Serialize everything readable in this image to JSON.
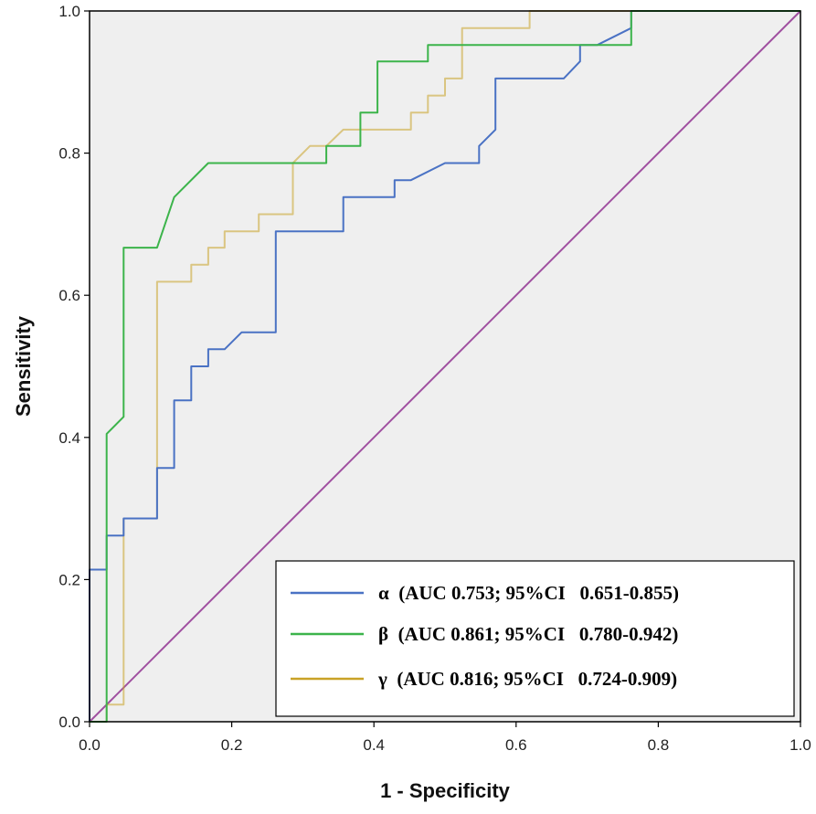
{
  "chart_data": {
    "type": "line",
    "title": "",
    "xlabel": "1 - Specificity",
    "ylabel": "Sensitivity",
    "xlim": [
      0,
      1
    ],
    "ylim": [
      0,
      1
    ],
    "x_ticks": [
      "0.0",
      "0.2",
      "0.4",
      "0.6",
      "0.8",
      "1.0"
    ],
    "y_ticks": [
      "0.0",
      "0.2",
      "0.4",
      "0.6",
      "0.8",
      "1.0"
    ],
    "grid": false,
    "legend_position": "bottom-right",
    "reference_line": {
      "name": "reference",
      "color": "#a050a0",
      "points": [
        [
          0,
          0
        ],
        [
          1,
          1
        ]
      ]
    },
    "series": [
      {
        "name": "α",
        "legend_label": "α  (AUC 0.753; 95%CI   0.651-0.855)",
        "color": "#4a72c4",
        "points": [
          [
            0,
            0
          ],
          [
            0,
            0.214
          ],
          [
            0.024,
            0.214
          ],
          [
            0.024,
            0.262
          ],
          [
            0.048,
            0.262
          ],
          [
            0.048,
            0.286
          ],
          [
            0.095,
            0.286
          ],
          [
            0.095,
            0.357
          ],
          [
            0.119,
            0.357
          ],
          [
            0.119,
            0.452
          ],
          [
            0.143,
            0.452
          ],
          [
            0.143,
            0.5
          ],
          [
            0.167,
            0.5
          ],
          [
            0.167,
            0.524
          ],
          [
            0.19,
            0.524
          ],
          [
            0.214,
            0.548
          ],
          [
            0.262,
            0.548
          ],
          [
            0.262,
            0.69
          ],
          [
            0.357,
            0.69
          ],
          [
            0.357,
            0.738
          ],
          [
            0.429,
            0.738
          ],
          [
            0.429,
            0.762
          ],
          [
            0.452,
            0.762
          ],
          [
            0.5,
            0.786
          ],
          [
            0.548,
            0.786
          ],
          [
            0.548,
            0.81
          ],
          [
            0.571,
            0.833
          ],
          [
            0.571,
            0.905
          ],
          [
            0.667,
            0.905
          ],
          [
            0.69,
            0.929
          ],
          [
            0.69,
            0.952
          ],
          [
            0.714,
            0.952
          ],
          [
            0.762,
            0.976
          ],
          [
            0.762,
            1
          ],
          [
            1,
            1
          ]
        ]
      },
      {
        "name": "β",
        "legend_label": "β  (AUC 0.861; 95%CI   0.780-0.942)",
        "color": "#3cb44b",
        "points": [
          [
            0,
            0
          ],
          [
            0.024,
            0
          ],
          [
            0.024,
            0.405
          ],
          [
            0.048,
            0.429
          ],
          [
            0.048,
            0.667
          ],
          [
            0.095,
            0.667
          ],
          [
            0.119,
            0.738
          ],
          [
            0.167,
            0.786
          ],
          [
            0.333,
            0.786
          ],
          [
            0.333,
            0.81
          ],
          [
            0.381,
            0.81
          ],
          [
            0.381,
            0.857
          ],
          [
            0.405,
            0.857
          ],
          [
            0.405,
            0.929
          ],
          [
            0.476,
            0.929
          ],
          [
            0.476,
            0.952
          ],
          [
            0.762,
            0.952
          ],
          [
            0.762,
            1
          ],
          [
            1,
            1
          ]
        ]
      },
      {
        "name": "γ",
        "legend_label": "γ  (AUC 0.816; 95%CI   0.724-0.909)",
        "color": "#c9a227",
        "points": [
          [
            0,
            0
          ],
          [
            0.024,
            0
          ],
          [
            0.024,
            0.024
          ],
          [
            0.048,
            0.024
          ],
          [
            0.048,
            0.286
          ],
          [
            0.095,
            0.286
          ],
          [
            0.095,
            0.619
          ],
          [
            0.143,
            0.619
          ],
          [
            0.143,
            0.643
          ],
          [
            0.167,
            0.643
          ],
          [
            0.167,
            0.667
          ],
          [
            0.19,
            0.667
          ],
          [
            0.19,
            0.69
          ],
          [
            0.238,
            0.69
          ],
          [
            0.238,
            0.714
          ],
          [
            0.286,
            0.714
          ],
          [
            0.286,
            0.786
          ],
          [
            0.31,
            0.81
          ],
          [
            0.333,
            0.81
          ],
          [
            0.357,
            0.833
          ],
          [
            0.452,
            0.833
          ],
          [
            0.452,
            0.857
          ],
          [
            0.476,
            0.857
          ],
          [
            0.476,
            0.881
          ],
          [
            0.5,
            0.881
          ],
          [
            0.5,
            0.905
          ],
          [
            0.524,
            0.905
          ],
          [
            0.524,
            0.929
          ],
          [
            0.524,
            0.976
          ],
          [
            0.619,
            0.976
          ],
          [
            0.619,
            1
          ],
          [
            1,
            1
          ]
        ]
      }
    ]
  }
}
